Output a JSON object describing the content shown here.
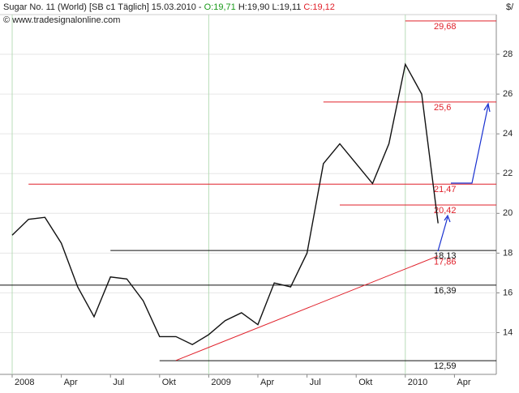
{
  "chart_data": {
    "type": "line",
    "header": {
      "instrument": "Sugar No. 11 (World) [SB c1  Täglich] 15.03.2010 -",
      "open": "O:19,71",
      "high": "H:19,90",
      "low": "L:19,11",
      "close": "C:19,12"
    },
    "copyright": "© www.tradesignalonline.com",
    "y_unit": "$/",
    "x": [
      "2008-01",
      "2008-02",
      "2008-03",
      "2008-04",
      "2008-05",
      "2008-06",
      "2008-07",
      "2008-08",
      "2008-09",
      "2008-10",
      "2008-11",
      "2008-12",
      "2009-01",
      "2009-02",
      "2009-03",
      "2009-04",
      "2009-05",
      "2009-06",
      "2009-07",
      "2009-08",
      "2009-09",
      "2009-10",
      "2009-11",
      "2009-12",
      "2010-01",
      "2010-02",
      "2010-03"
    ],
    "series": [
      {
        "name": "SB c1",
        "color": "#111111",
        "values": [
          18.9,
          19.7,
          19.8,
          18.5,
          16.3,
          14.8,
          16.8,
          16.7,
          15.6,
          13.8,
          13.8,
          13.4,
          13.9,
          14.6,
          15.0,
          14.4,
          16.5,
          16.3,
          18.0,
          22.5,
          23.5,
          22.5,
          21.5,
          23.5,
          27.5,
          26.0,
          19.5
        ]
      }
    ],
    "levels": [
      {
        "value": 29.68,
        "label": "29,68",
        "from": "2010-01",
        "color": "#e0202a"
      },
      {
        "value": 25.6,
        "label": "25,6",
        "from": "2009-08",
        "color": "#e0202a"
      },
      {
        "value": 21.47,
        "label": "21,47",
        "from": "2008-02",
        "color": "#e0202a"
      },
      {
        "value": 20.42,
        "label": "20,42",
        "from": "2009-09",
        "color": "#e0202a"
      },
      {
        "value": 18.13,
        "label": "18,13",
        "from": "2008-07",
        "color": "#111111"
      },
      {
        "value": 16.39,
        "label": "16,39",
        "from": "2007-12",
        "color": "#111111"
      },
      {
        "value": 12.59,
        "label": "12,59",
        "from": "2008-10",
        "color": "#111111"
      }
    ],
    "trendline": {
      "x": [
        "2008-11",
        "2010-03"
      ],
      "values": [
        12.6,
        17.86
      ],
      "label": "17,86",
      "color": "#e0202a"
    },
    "ylim": [
      11.9,
      30
    ],
    "yticks": [
      14,
      16,
      18,
      20,
      22,
      24,
      26,
      28
    ],
    "xticks": [
      {
        "value": "2008-01",
        "label": "2008"
      },
      {
        "value": "2008-04",
        "label": "Apr"
      },
      {
        "value": "2008-07",
        "label": "Jul"
      },
      {
        "value": "2008-10",
        "label": "Okt"
      },
      {
        "value": "2009-01",
        "label": "2009"
      },
      {
        "value": "2009-04",
        "label": "Apr"
      },
      {
        "value": "2009-07",
        "label": "Jul"
      },
      {
        "value": "2009-10",
        "label": "Okt"
      },
      {
        "value": "2010-01",
        "label": "2010"
      },
      {
        "value": "2010-04",
        "label": "Apr"
      }
    ],
    "grid": true
  }
}
